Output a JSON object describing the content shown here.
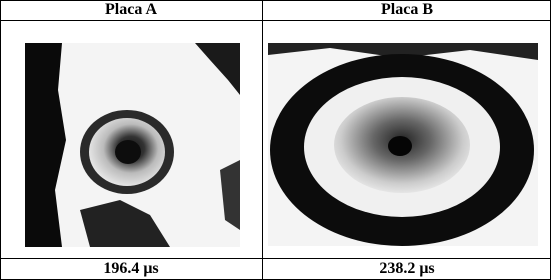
{
  "table": {
    "header": [
      "Placa A",
      "Placa B"
    ],
    "footer": [
      "196.4 μs",
      "238.2 μs"
    ]
  }
}
